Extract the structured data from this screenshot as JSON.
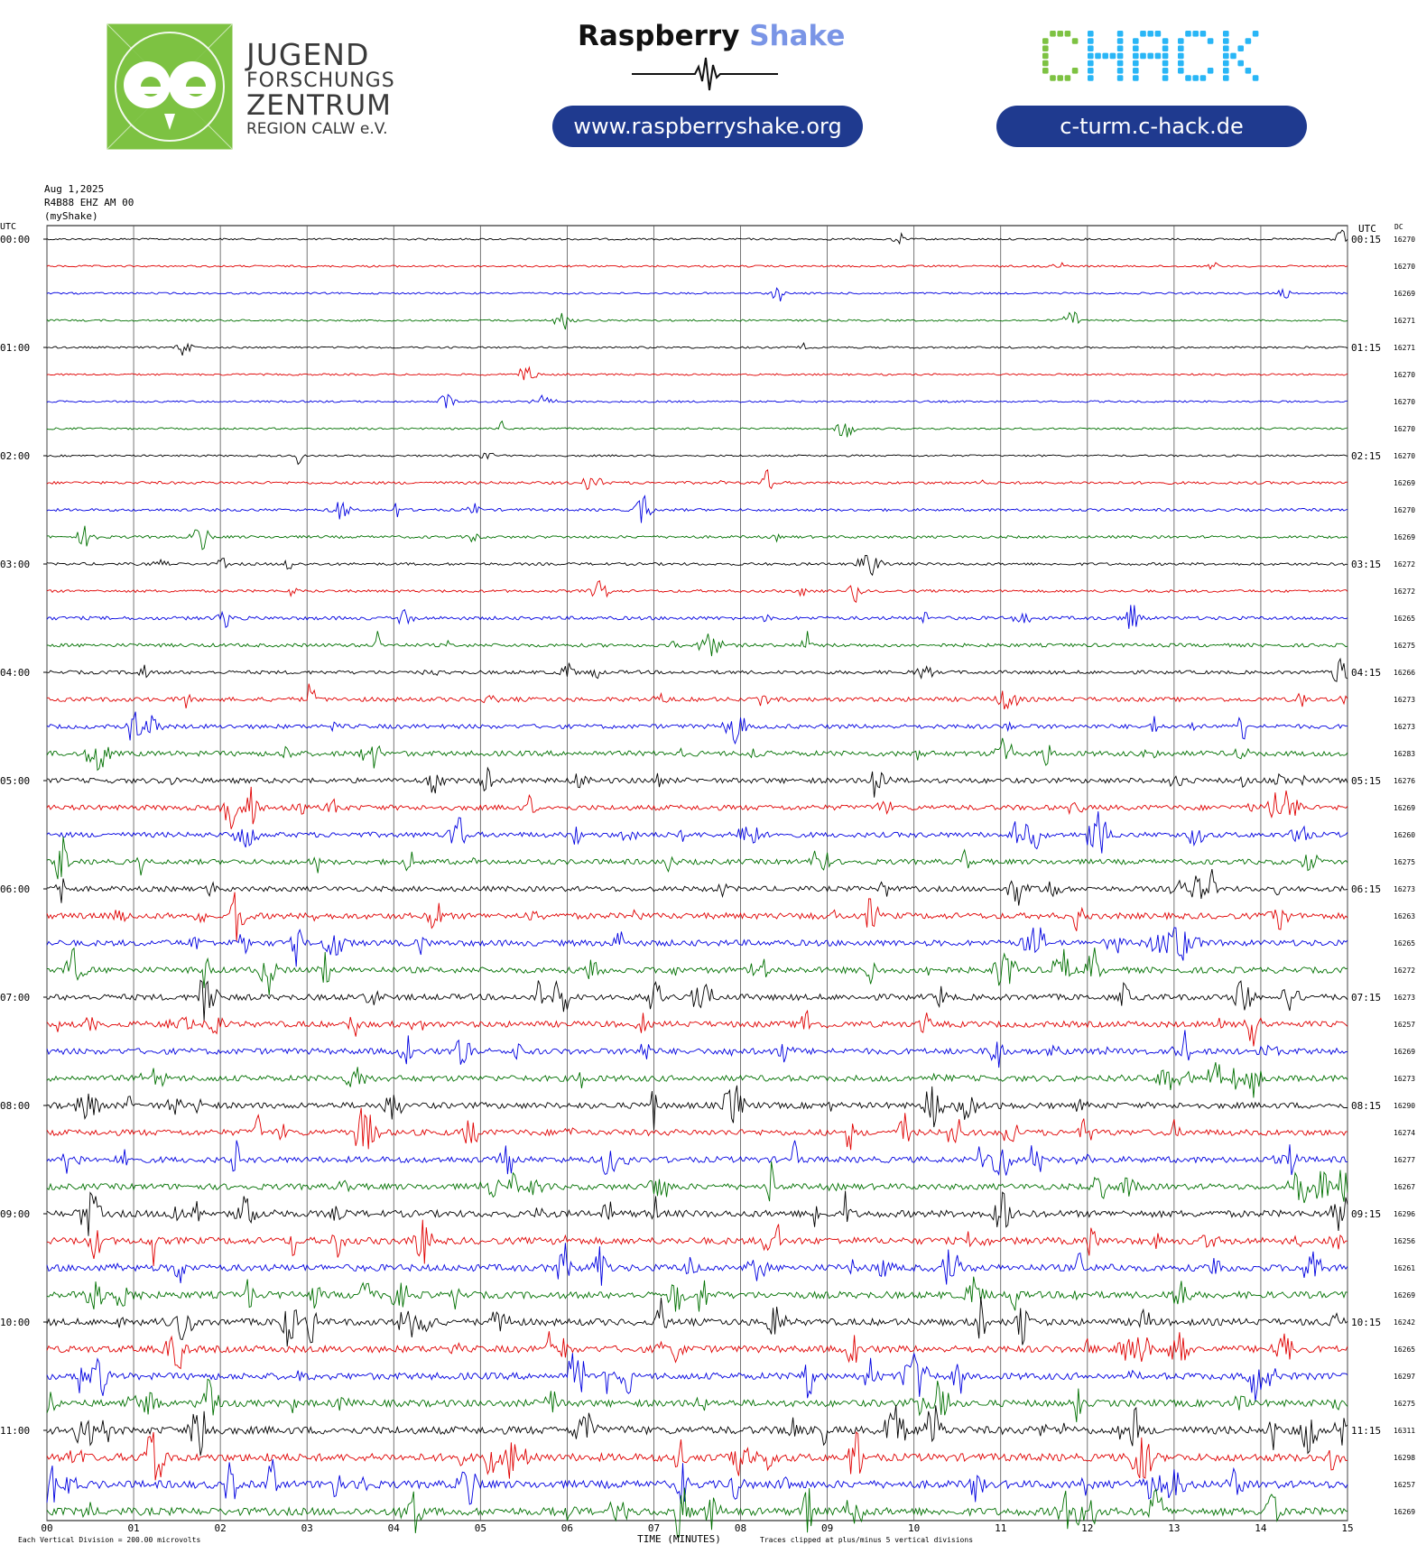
{
  "header": {
    "jfz_logo": {
      "line1": "JUGEND",
      "line2": "FORSCHUNGS",
      "line3": "ZENTRUM",
      "line4": "REGION CALW e.V.",
      "color": "#7dc242"
    },
    "raspberry_shake": {
      "word1": "Raspberry",
      "word2": "Shake",
      "url": "www.raspberryshake.org"
    },
    "chack": {
      "wordmark": "CHACK",
      "url": "c-turm.c-hack.de",
      "green": "#7dc242",
      "blue": "#29b6f6"
    },
    "pill_color": "#1f3a8f"
  },
  "chart_meta": {
    "date": "Aug 1,2025",
    "station": "R4B88 EHZ AM 00",
    "source": "(myShake)"
  },
  "chart_data": {
    "type": "line",
    "subtype": "helicorder",
    "left_axis_label": "UTC",
    "right_axis_label": "UTC",
    "dc_label": "DC",
    "xlabel": "TIME (MINUTES)",
    "xlim": [
      0,
      15
    ],
    "x_ticks": [
      "00",
      "01",
      "02",
      "03",
      "04",
      "05",
      "06",
      "07",
      "08",
      "09",
      "10",
      "11",
      "12",
      "13",
      "14",
      "15"
    ],
    "colors": [
      "#000000",
      "#e00000",
      "#0000e0",
      "#007000"
    ],
    "rows_per_hour": 4,
    "left_hour_labels": [
      "00:00",
      "01:00",
      "02:00",
      "03:00",
      "04:00",
      "05:00",
      "06:00",
      "07:00",
      "08:00",
      "09:00",
      "10:00",
      "11:00"
    ],
    "right_labels": [
      "00:15",
      "01:15",
      "02:15",
      "03:15",
      "04:15",
      "05:15",
      "06:15",
      "07:15",
      "08:15",
      "09:15",
      "10:15",
      "11:15"
    ],
    "dc_offsets": [
      16270,
      16270,
      16269,
      16271,
      16271,
      16270,
      16270,
      16270,
      16270,
      16269,
      16270,
      16269,
      16272,
      16272,
      16265,
      16275,
      16266,
      16273,
      16273,
      16283,
      16276,
      16269,
      16260,
      16275,
      16273,
      16263,
      16265,
      16272,
      16273,
      16257,
      16269,
      16273,
      16290,
      16274,
      16277,
      16267,
      16296,
      16256,
      16261,
      16269,
      16242,
      16265,
      16297,
      16275,
      16311,
      16298,
      16257,
      16269
    ],
    "activity_level": [
      1,
      1,
      1,
      1,
      1,
      1,
      1,
      1,
      1,
      2,
      2,
      2,
      2,
      2,
      3,
      3,
      3,
      4,
      4,
      5,
      5,
      5,
      5,
      5,
      5,
      6,
      6,
      6,
      6,
      6,
      6,
      6,
      6,
      6,
      6,
      6,
      7,
      7,
      7,
      7,
      7,
      7,
      7,
      7,
      8,
      8,
      8,
      8
    ],
    "footer_left": "Each Vertical Division =  200.00 microvolts",
    "footer_right": "Traces clipped at plus/minus 5 vertical divisions"
  }
}
